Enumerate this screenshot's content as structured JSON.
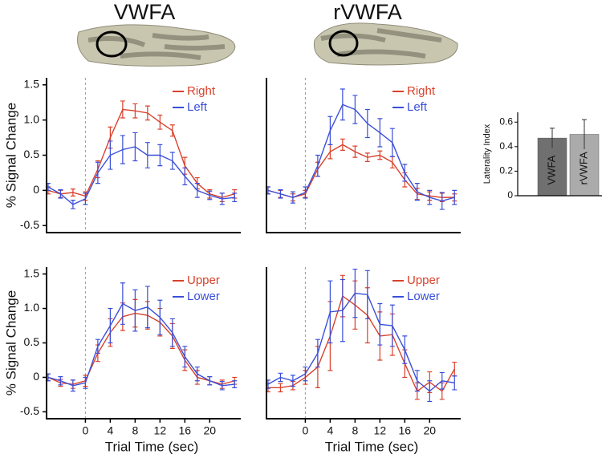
{
  "column_titles": [
    "VWFA",
    "rVWFA"
  ],
  "chart_data": [
    {
      "type": "line",
      "x": [
        -6,
        -4,
        -2,
        0,
        2,
        4,
        6,
        8,
        10,
        12,
        14,
        16,
        18,
        20,
        22,
        24
      ],
      "xlim": [
        -6.25,
        25
      ],
      "ylim": [
        -0.6,
        1.6
      ],
      "yticks": [
        -0.5,
        0,
        0.5,
        {
          "value": 1,
          "label": "1.0"
        },
        1.5
      ],
      "y_label": "% Signal Change",
      "reference_x": 0,
      "legend": "upper right",
      "series": [
        {
          "name": "Right",
          "color": "#d9412b",
          "values": [
            0.0,
            -0.05,
            -0.03,
            -0.08,
            0.3,
            0.75,
            1.15,
            1.13,
            1.1,
            0.97,
            0.85,
            0.35,
            0.1,
            -0.05,
            -0.1,
            -0.05
          ],
          "errors": [
            0.05,
            0.05,
            0.05,
            0.06,
            0.12,
            0.15,
            0.12,
            0.1,
            0.1,
            0.1,
            0.08,
            0.12,
            0.08,
            0.06,
            0.06,
            0.06
          ]
        },
        {
          "name": "Left",
          "color": "#3a4fd9",
          "values": [
            0.05,
            -0.05,
            -0.2,
            -0.12,
            0.25,
            0.5,
            0.58,
            0.62,
            0.5,
            0.5,
            0.42,
            0.2,
            0.0,
            -0.07,
            -0.12,
            -0.1
          ],
          "errors": [
            0.05,
            0.06,
            0.06,
            0.08,
            0.15,
            0.2,
            0.2,
            0.2,
            0.18,
            0.15,
            0.12,
            0.12,
            0.1,
            0.06,
            0.08,
            0.06
          ]
        }
      ]
    },
    {
      "type": "line",
      "x": [
        -6,
        -4,
        -2,
        0,
        2,
        4,
        6,
        8,
        10,
        12,
        14,
        16,
        18,
        20,
        22,
        24
      ],
      "xlim": [
        -6.25,
        25
      ],
      "ylim": [
        -0.6,
        1.6
      ],
      "reference_x": 0,
      "legend": "upper right",
      "series": [
        {
          "name": "Right",
          "color": "#d9412b",
          "values": [
            0.0,
            -0.05,
            -0.1,
            -0.05,
            0.3,
            0.55,
            0.65,
            0.55,
            0.47,
            0.5,
            0.4,
            0.15,
            -0.05,
            -0.08,
            -0.1,
            -0.1
          ],
          "errors": [
            0.05,
            0.05,
            0.05,
            0.05,
            0.1,
            0.1,
            0.08,
            0.08,
            0.06,
            0.06,
            0.08,
            0.1,
            0.08,
            0.06,
            0.06,
            0.05
          ]
        },
        {
          "name": "Left",
          "color": "#3a4fd9",
          "values": [
            0.0,
            -0.05,
            -0.1,
            -0.03,
            0.35,
            0.85,
            1.22,
            1.15,
            0.95,
            0.82,
            0.68,
            0.25,
            -0.02,
            -0.1,
            -0.15,
            -0.1
          ],
          "errors": [
            0.05,
            0.06,
            0.08,
            0.08,
            0.15,
            0.2,
            0.22,
            0.2,
            0.2,
            0.2,
            0.2,
            0.12,
            0.12,
            0.1,
            0.12,
            0.1
          ]
        }
      ]
    },
    {
      "type": "line",
      "x": [
        -6,
        -4,
        -2,
        0,
        2,
        4,
        6,
        8,
        10,
        12,
        14,
        16,
        18,
        20,
        22,
        24
      ],
      "xlim": [
        -6.25,
        25
      ],
      "ylim": [
        -0.6,
        1.6
      ],
      "xticks": [
        0,
        4,
        8,
        12,
        16,
        20
      ],
      "yticks": [
        -0.5,
        0,
        0.5,
        {
          "value": 1,
          "label": "1.0"
        },
        1.5
      ],
      "x_label": "Trial Time (sec)",
      "y_label": "% Signal Change",
      "reference_x": 0,
      "legend": "upper right",
      "series": [
        {
          "name": "Upper",
          "color": "#d9412b",
          "values": [
            0.0,
            -0.08,
            -0.1,
            -0.05,
            0.35,
            0.65,
            0.88,
            0.93,
            0.9,
            0.8,
            0.6,
            0.25,
            0.0,
            -0.05,
            -0.1,
            -0.05
          ],
          "errors": [
            0.05,
            0.05,
            0.06,
            0.08,
            0.12,
            0.2,
            0.2,
            0.2,
            0.2,
            0.2,
            0.18,
            0.15,
            0.1,
            0.06,
            0.06,
            0.05
          ]
        },
        {
          "name": "Lower",
          "color": "#3a4fd9",
          "values": [
            0.0,
            -0.05,
            -0.12,
            -0.08,
            0.45,
            0.75,
            1.07,
            0.97,
            1.02,
            0.87,
            0.65,
            0.3,
            0.05,
            -0.05,
            -0.12,
            -0.1
          ],
          "errors": [
            0.05,
            0.06,
            0.08,
            0.08,
            0.1,
            0.25,
            0.3,
            0.3,
            0.3,
            0.25,
            0.2,
            0.15,
            0.1,
            0.06,
            0.06,
            0.05
          ]
        }
      ]
    },
    {
      "type": "line",
      "x": [
        -6,
        -4,
        -2,
        0,
        2,
        4,
        6,
        8,
        10,
        12,
        14,
        16,
        18,
        20,
        22,
        24
      ],
      "xlim": [
        -6.25,
        25
      ],
      "ylim": [
        -0.6,
        1.6
      ],
      "xticks": [
        0,
        4,
        8,
        12,
        16,
        20
      ],
      "x_label": "Trial Time (sec)",
      "reference_x": 0,
      "legend": "upper right",
      "series": [
        {
          "name": "Upper",
          "color": "#d9412b",
          "values": [
            -0.15,
            -0.15,
            -0.12,
            0.0,
            0.15,
            0.6,
            1.18,
            1.05,
            0.9,
            0.6,
            0.62,
            0.2,
            -0.2,
            -0.07,
            -0.2,
            0.12
          ],
          "errors": [
            0.06,
            0.06,
            0.06,
            0.1,
            0.3,
            0.5,
            0.3,
            0.35,
            0.4,
            0.35,
            0.3,
            0.2,
            0.12,
            0.15,
            0.12,
            0.1
          ]
        },
        {
          "name": "Lower",
          "color": "#3a4fd9",
          "values": [
            -0.1,
            0.0,
            -0.05,
            0.05,
            0.35,
            0.95,
            0.97,
            1.22,
            1.2,
            0.77,
            0.75,
            0.4,
            -0.05,
            -0.2,
            -0.05,
            -0.08
          ],
          "errors": [
            0.06,
            0.06,
            0.08,
            0.1,
            0.2,
            0.45,
            0.45,
            0.35,
            0.35,
            0.3,
            0.3,
            0.2,
            0.15,
            0.15,
            0.12,
            0.1
          ]
        }
      ]
    },
    {
      "type": "bar",
      "categories": [
        "VWFA",
        "rVWFA"
      ],
      "values": [
        0.47,
        0.5
      ],
      "errors": [
        0.08,
        0.12
      ],
      "colors": [
        "#707070",
        "#ababab"
      ],
      "ylim": [
        0,
        0.68
      ],
      "yticks": [
        0,
        0.2,
        0.4,
        0.6
      ],
      "y_label": "Laterality Index"
    }
  ]
}
